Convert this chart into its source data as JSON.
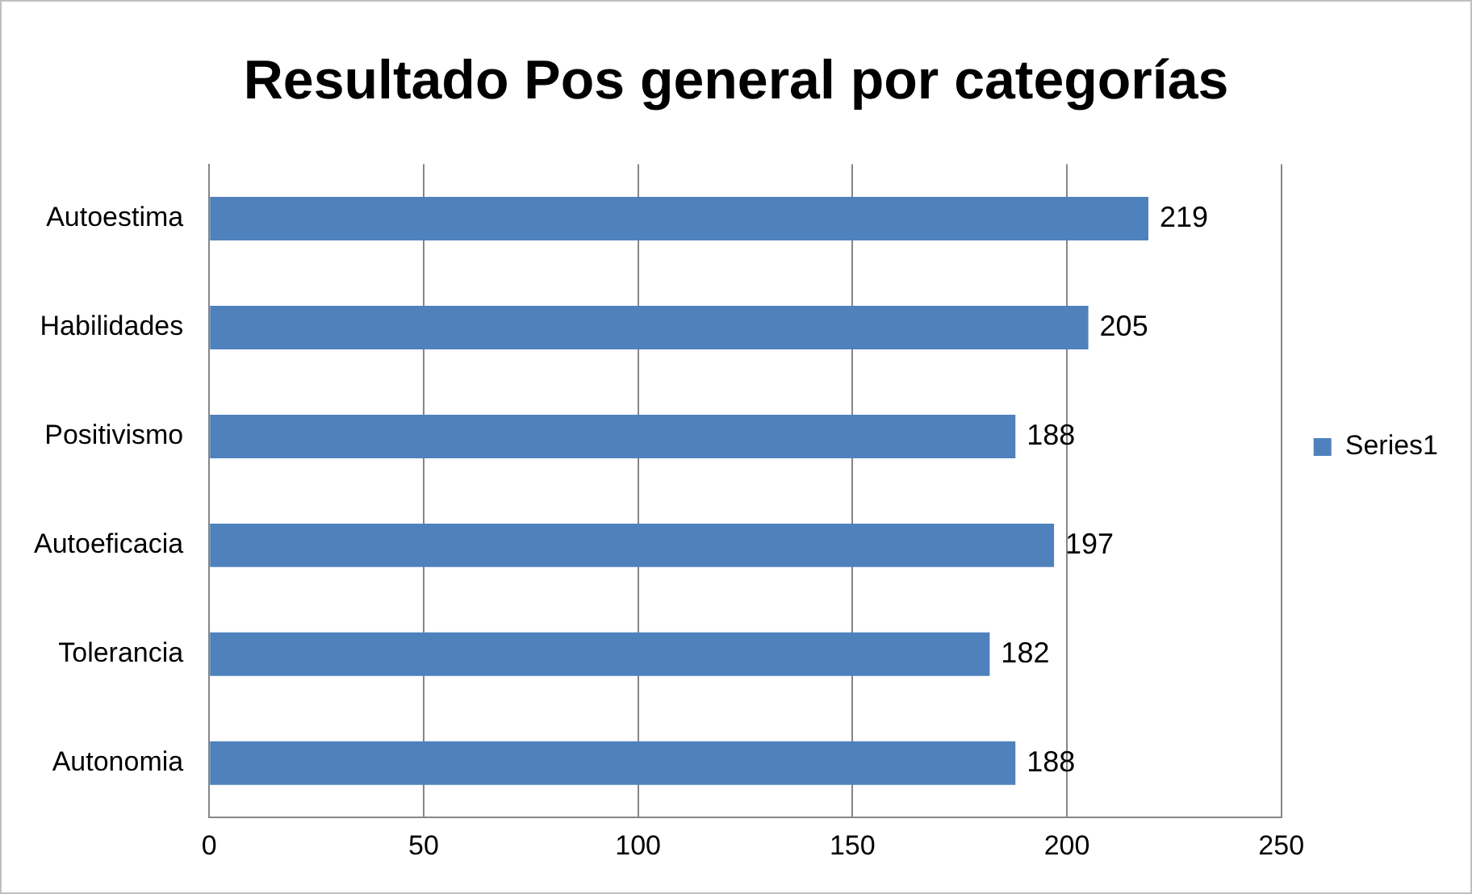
{
  "chart_data": {
    "type": "bar",
    "orientation": "horizontal",
    "title": "Resultado Pos general por categorías",
    "categories": [
      "Autoestima",
      "Habilidades",
      "Positivismo",
      "Autoeficacia",
      "Tolerancia",
      "Autonomia"
    ],
    "series": [
      {
        "name": "Series1",
        "color": "#4f81bd",
        "values": [
          219,
          205,
          188,
          197,
          182,
          188
        ]
      }
    ],
    "xlim": [
      0,
      250
    ],
    "xticks": [
      0,
      50,
      100,
      150,
      200,
      250
    ],
    "grid": "x",
    "legend": "right",
    "data_labels": true
  }
}
